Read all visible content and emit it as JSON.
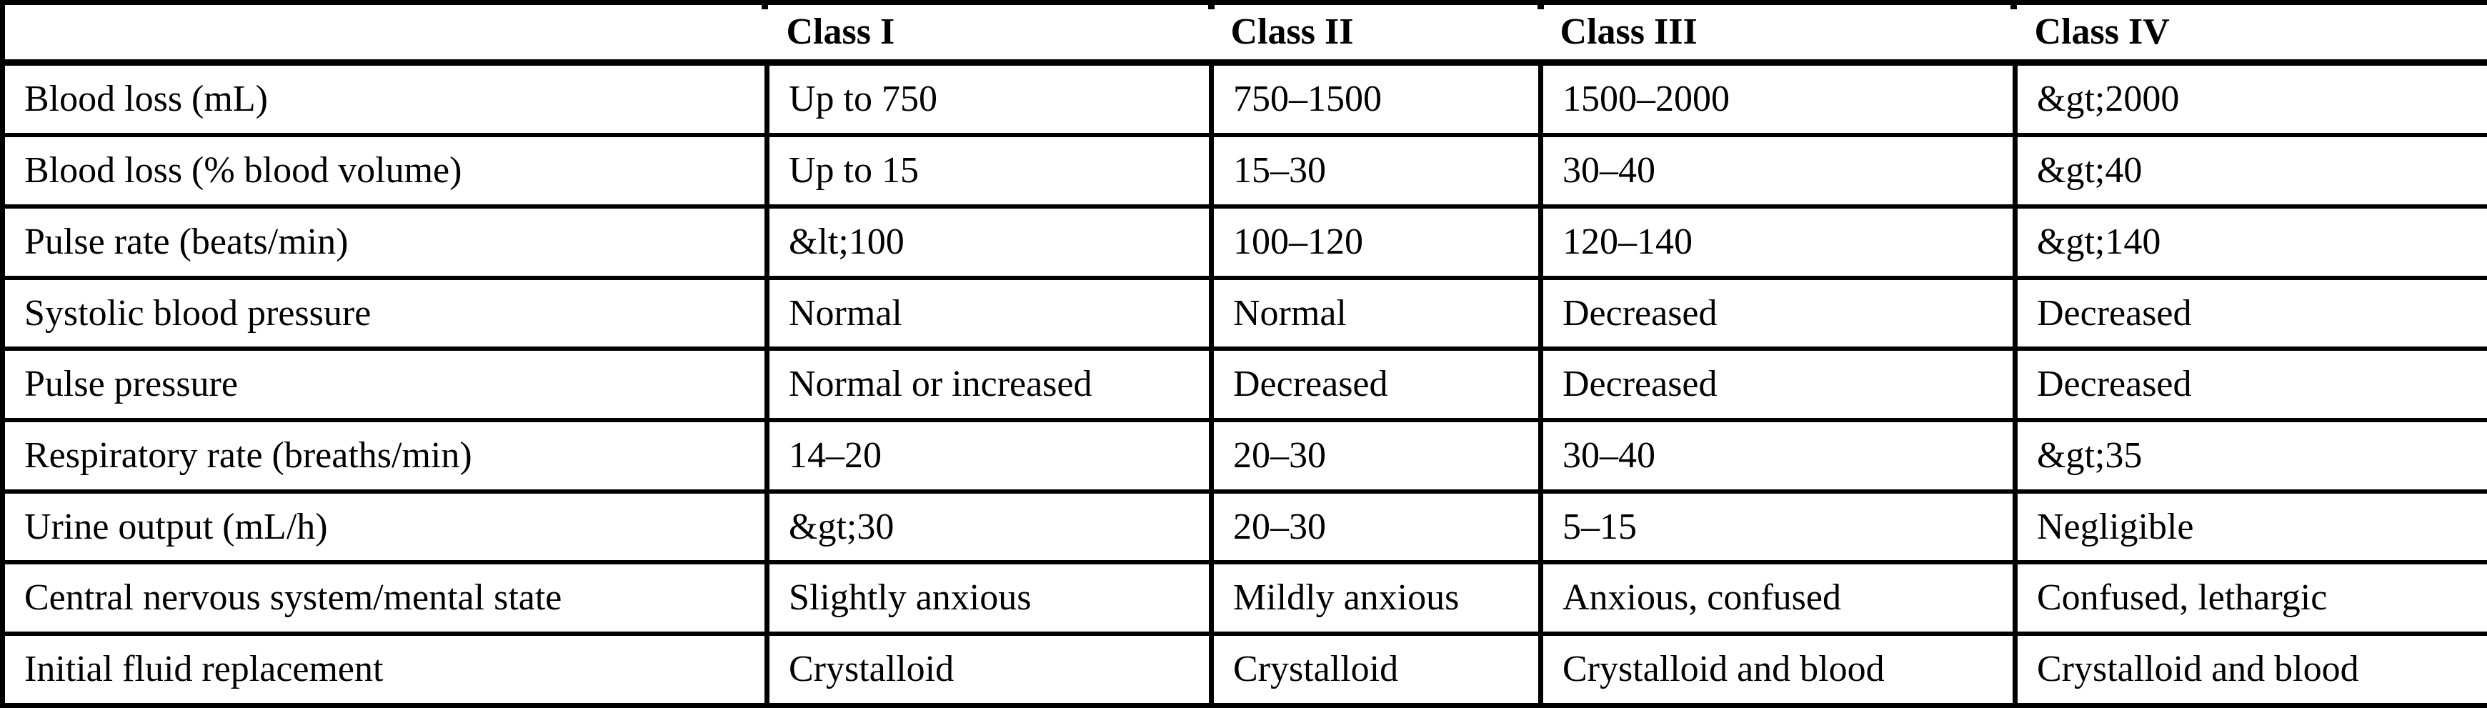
{
  "table": {
    "header": {
      "corner": "",
      "columns": [
        "Class I",
        "Class II",
        "Class III",
        "Class IV"
      ]
    },
    "rows": [
      {
        "label": "Blood loss (mL)",
        "values": [
          "Up to 750",
          "750–1500",
          "1500–2000",
          "&gt;2000"
        ]
      },
      {
        "label": "Blood loss (% blood volume)",
        "values": [
          "Up to 15",
          "15–30",
          "30–40",
          "&gt;40"
        ]
      },
      {
        "label": "Pulse rate (beats/min)",
        "values": [
          "&lt;100",
          "100–120",
          "120–140",
          "&gt;140"
        ]
      },
      {
        "label": "Systolic blood pressure",
        "values": [
          "Normal",
          "Normal",
          "Decreased",
          "Decreased"
        ]
      },
      {
        "label": "Pulse pressure",
        "values": [
          "Normal or increased",
          "Decreased",
          "Decreased",
          "Decreased"
        ]
      },
      {
        "label": "Respiratory rate (breaths/min)",
        "values": [
          "14–20",
          "20–30",
          "30–40",
          "&gt;35"
        ]
      },
      {
        "label": "Urine output (mL/h)",
        "values": [
          "&gt;30",
          "20–30",
          "5–15",
          "Negligible"
        ]
      },
      {
        "label": "Central nervous system/mental state",
        "values": [
          "Slightly anxious",
          "Mildly anxious",
          "Anxious, confused",
          "Confused, lethargic"
        ]
      },
      {
        "label": "Initial fluid replacement",
        "values": [
          "Crystalloid",
          "Crystalloid",
          "Crystalloid and blood",
          "Crystalloid and blood"
        ]
      }
    ],
    "colors": {
      "border": "#000000",
      "background": "#ffffff",
      "text": "#000000"
    }
  }
}
